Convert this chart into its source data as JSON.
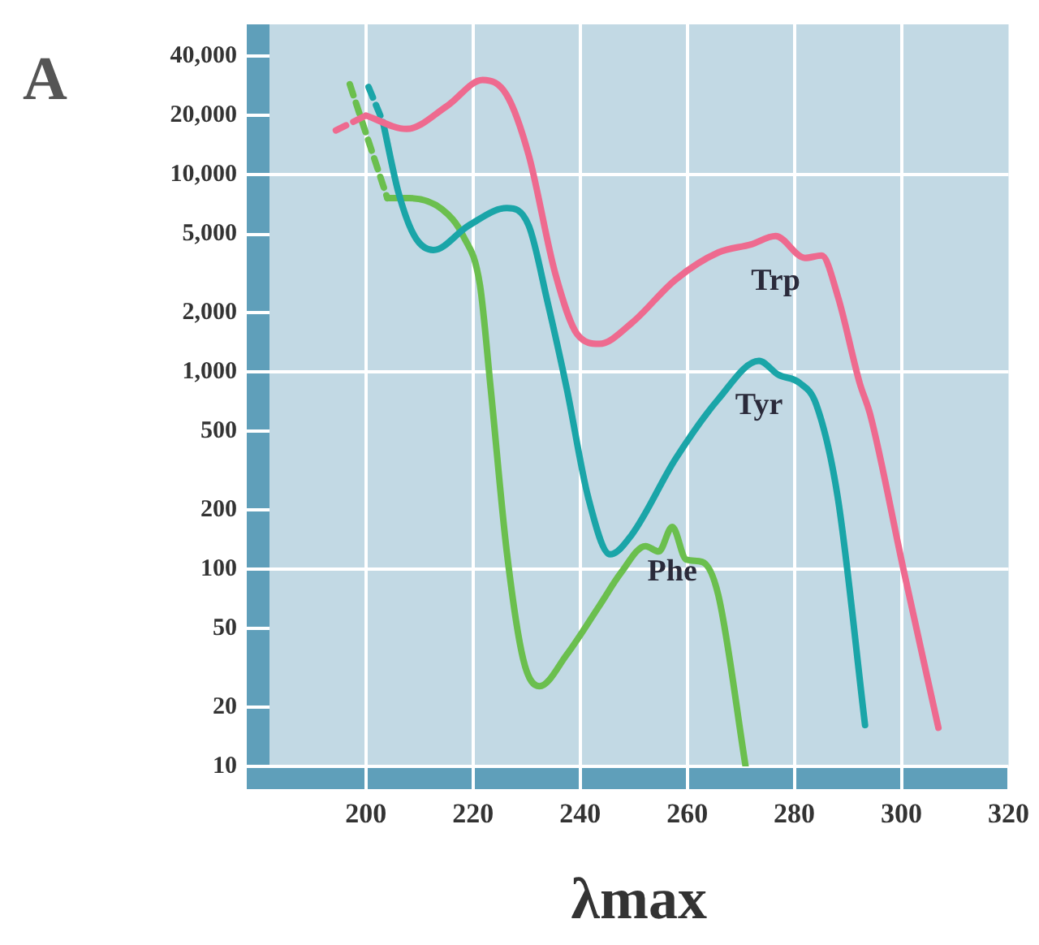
{
  "chart_data": {
    "type": "line",
    "xlabel": "λmax",
    "annotations": [
      "A"
    ],
    "log": "y",
    "grid": true,
    "marker": "none",
    "legend": false,
    "xlim": [
      182,
      320
    ],
    "xticks": [
      200,
      220,
      240,
      260,
      280,
      300,
      320
    ],
    "ylim": [
      10,
      58000
    ],
    "yticks": [
      10,
      20,
      50,
      100,
      200,
      500,
      {
        "value": 1000,
        "label": "1,000"
      },
      {
        "value": 2000,
        "label": "2,000"
      },
      {
        "value": 5000,
        "label": "5,000"
      },
      {
        "value": 10000,
        "label": "10,000"
      },
      {
        "value": 20000,
        "label": "20,000"
      },
      {
        "value": 40000,
        "label": "40,000"
      }
    ],
    "series": [
      {
        "color": "#ee6a8f",
        "line_style": "dashed",
        "x": [
          194.4,
          200
        ],
        "values": [
          16800,
          20000
        ]
      },
      {
        "name": "Trp",
        "color": "#ee6a8f",
        "line_style": "solid",
        "x": [
          200,
          207.6,
          215.2,
          221.8,
          226.3,
          230.4,
          235.4,
          239.5,
          243.6,
          249.6,
          257.8,
          265.8,
          271.9,
          276.5,
          282,
          285.1,
          288.1,
          292.2,
          294.2,
          300.3,
          306.9
        ],
        "values": [
          20000,
          17100,
          22400,
          30300,
          25400,
          12600,
          3130,
          1550,
          1390,
          1770,
          2940,
          4040,
          4440,
          4890,
          3790,
          3900,
          2430,
          880,
          604,
          102,
          15.7
        ]
      },
      {
        "color": "#1aa5a8",
        "line_style": "dashed",
        "x": [
          200.5,
          203.2
        ],
        "values": [
          27900,
          18500
        ]
      },
      {
        "name": "Tyr",
        "color": "#1aa5a8",
        "line_style": "solid",
        "x": [
          203.2,
          206.1,
          209.1,
          212.6,
          219.2,
          226.3,
          230.4,
          233.9,
          237.5,
          241.5,
          245.6,
          249.6,
          257.8,
          265.8,
          273.4,
          277,
          281,
          284.1,
          288.1,
          293.2
        ],
        "values": [
          18500,
          8110,
          4880,
          4160,
          5540,
          6790,
          5540,
          2280,
          826,
          232,
          119,
          149,
          362,
          728,
          1140,
          969,
          880,
          684,
          232,
          16.2
        ]
      },
      {
        "color": "#6bbf4e",
        "line_style": "dashed",
        "x": [
          197,
          204
        ],
        "values": [
          28800,
          7620
        ]
      },
      {
        "name": "Phe",
        "color": "#6bbf4e",
        "line_style": "solid",
        "x": [
          204,
          208.1,
          214.2,
          218.2,
          221.3,
          223.3,
          226.3,
          229.4,
          232.4,
          237.5,
          243.6,
          247.6,
          252.2,
          254.7,
          257.2,
          259.8,
          262.8,
          265.8,
          270.9
        ],
        "values": [
          7620,
          7620,
          6700,
          4880,
          2760,
          826,
          123,
          34.7,
          25.5,
          36.9,
          65.3,
          95.7,
          131,
          123,
          164,
          112,
          109,
          74,
          10
        ]
      }
    ]
  }
}
